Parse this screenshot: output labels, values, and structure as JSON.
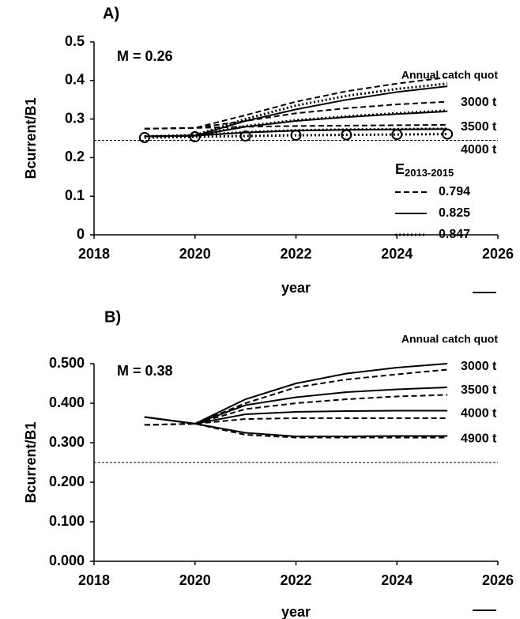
{
  "chart_data": [
    {
      "type": "line",
      "panel_label": "A)",
      "annotation": "M = 0.26",
      "xlabel": "year",
      "ylabel": "Bcurrent/B1",
      "x": [
        2019,
        2020,
        2021,
        2022,
        2023,
        2024,
        2025
      ],
      "xlim": [
        2018,
        2026
      ],
      "xticks": [
        2018,
        2020,
        2022,
        2024,
        2026
      ],
      "ylim": [
        0,
        0.5
      ],
      "yticks": [
        0,
        0.1,
        0.2,
        0.3,
        0.4,
        0.5
      ],
      "hline": 0.245,
      "color": "#000000",
      "catch_title": "Annual catch quot",
      "legend": {
        "title": "E",
        "title_sub": "2013-2015",
        "entries": [
          {
            "label": "0.794",
            "dash": "dashed"
          },
          {
            "label": "0.825",
            "dash": "solid"
          },
          {
            "label": "0.847",
            "dash": "dotted"
          }
        ]
      },
      "groups": [
        {
          "label": "3000 t",
          "series": [
            {
              "dash": "dashed",
              "values": [
                0.275,
                0.277,
                0.31,
                0.345,
                0.372,
                0.392,
                0.408
              ]
            },
            {
              "dash": "solid",
              "values": [
                0.255,
                0.257,
                0.295,
                0.325,
                0.35,
                0.37,
                0.385
              ]
            },
            {
              "dash": "dotted",
              "values": [
                0.253,
                0.258,
                0.3,
                0.335,
                0.36,
                0.378,
                0.392
              ]
            }
          ]
        },
        {
          "label": "3500 t",
          "series": [
            {
              "dash": "dashed",
              "values": [
                0.275,
                0.277,
                0.295,
                0.315,
                0.328,
                0.338,
                0.345
              ]
            },
            {
              "dash": "solid",
              "values": [
                0.255,
                0.257,
                0.28,
                0.295,
                0.305,
                0.313,
                0.32
              ]
            },
            {
              "dash": "dotted",
              "values": [
                0.255,
                0.258,
                0.282,
                0.297,
                0.307,
                0.315,
                0.322
              ]
            }
          ]
        },
        {
          "label": "4000 t",
          "series": [
            {
              "dash": "dashed",
              "values": [
                0.275,
                0.277,
                0.28,
                0.282,
                0.283,
                0.284,
                0.285
              ]
            },
            {
              "dash": "solid",
              "values": [
                0.255,
                0.257,
                0.265,
                0.27,
                0.272,
                0.273,
                0.274
              ]
            },
            {
              "dash": "dotted",
              "values": [
                0.255,
                0.258,
                0.266,
                0.271,
                0.273,
                0.274,
                0.275
              ]
            }
          ]
        }
      ],
      "series": [
        {
          "dash": "dotted",
          "marker": "circle",
          "values": [
            0.252,
            0.254,
            0.256,
            0.258,
            0.259,
            0.26,
            0.261
          ]
        }
      ]
    },
    {
      "type": "line",
      "panel_label": "B)",
      "annotation": "M = 0.38",
      "xlabel": "year",
      "ylabel": "Bcurrent/B1",
      "x": [
        2019,
        2020,
        2021,
        2022,
        2023,
        2024,
        2025
      ],
      "xlim": [
        2018,
        2026
      ],
      "xticks": [
        2018,
        2020,
        2022,
        2024,
        2026
      ],
      "ylim": [
        0,
        0.5
      ],
      "yticks": [
        {
          "value": 0,
          "label": "0.000"
        },
        {
          "value": 0.1,
          "label": "0.100"
        },
        {
          "value": 0.2,
          "label": "0.200"
        },
        {
          "value": 0.3,
          "label": "0.300"
        },
        {
          "value": 0.4,
          "label": "0.400"
        },
        {
          "value": 0.5,
          "label": "0.500"
        }
      ],
      "hline": 0.25,
      "color": "#000000",
      "catch_title": "Annual catch quot",
      "groups": [
        {
          "label": "3000 t",
          "series": [
            {
              "dash": "solid",
              "values": [
                0.365,
                0.348,
                0.41,
                0.45,
                0.475,
                0.49,
                0.5
              ]
            },
            {
              "dash": "dashed",
              "values": [
                0.345,
                0.348,
                0.4,
                0.44,
                0.46,
                0.473,
                0.485
              ]
            }
          ]
        },
        {
          "label": "3500 t",
          "series": [
            {
              "dash": "solid",
              "values": [
                0.365,
                0.348,
                0.395,
                0.415,
                0.428,
                0.435,
                0.44
              ]
            },
            {
              "dash": "dashed",
              "values": [
                0.345,
                0.348,
                0.385,
                0.4,
                0.41,
                0.417,
                0.421
              ]
            }
          ]
        },
        {
          "label": "4000 t",
          "series": [
            {
              "dash": "solid",
              "values": [
                0.365,
                0.348,
                0.372,
                0.378,
                0.38,
                0.381,
                0.381
              ]
            },
            {
              "dash": "dashed",
              "values": [
                0.345,
                0.348,
                0.36,
                0.362,
                0.362,
                0.362,
                0.362
              ]
            }
          ]
        },
        {
          "label": "4900 t",
          "series": [
            {
              "dash": "solid",
              "values": [
                0.365,
                0.348,
                0.325,
                0.316,
                0.316,
                0.317,
                0.317
              ]
            },
            {
              "dash": "dashed",
              "values": [
                0.345,
                0.348,
                0.32,
                0.313,
                0.313,
                0.313,
                0.313
              ]
            }
          ]
        }
      ]
    }
  ]
}
